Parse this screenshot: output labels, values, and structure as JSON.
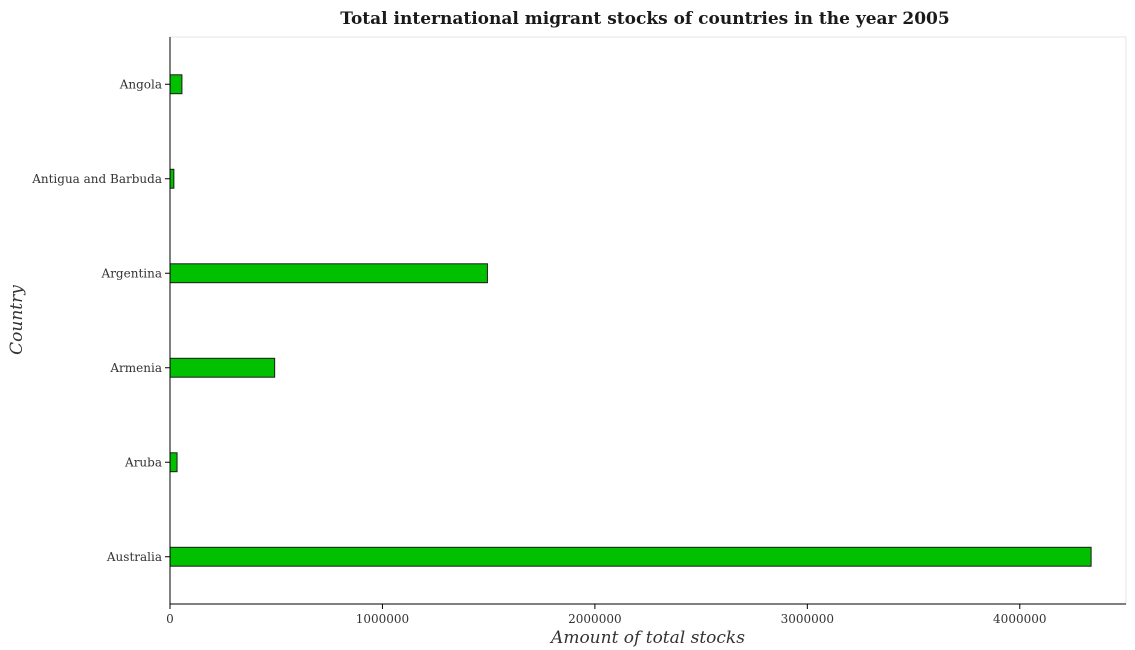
{
  "chart_data": {
    "type": "bar",
    "orientation": "horizontal",
    "title": "Total international migrant stocks of countries in the year 2005",
    "xlabel": "Amount of total stocks",
    "ylabel": "Country",
    "categories": [
      "Angola",
      "Antigua and Barbuda",
      "Argentina",
      "Armenia",
      "Aruba",
      "Australia"
    ],
    "values": [
      56102,
      18218,
      1494137,
      492645,
      33237,
      4335806
    ],
    "xlim": [
      0,
      4500000
    ],
    "xticks": [
      0,
      1000000,
      2000000,
      3000000,
      4000000
    ],
    "xtick_labels": [
      "0",
      "1000000",
      "2000000",
      "3000000",
      "4000000"
    ],
    "grid": false,
    "legend": "none",
    "bar_color": "#00c000"
  }
}
